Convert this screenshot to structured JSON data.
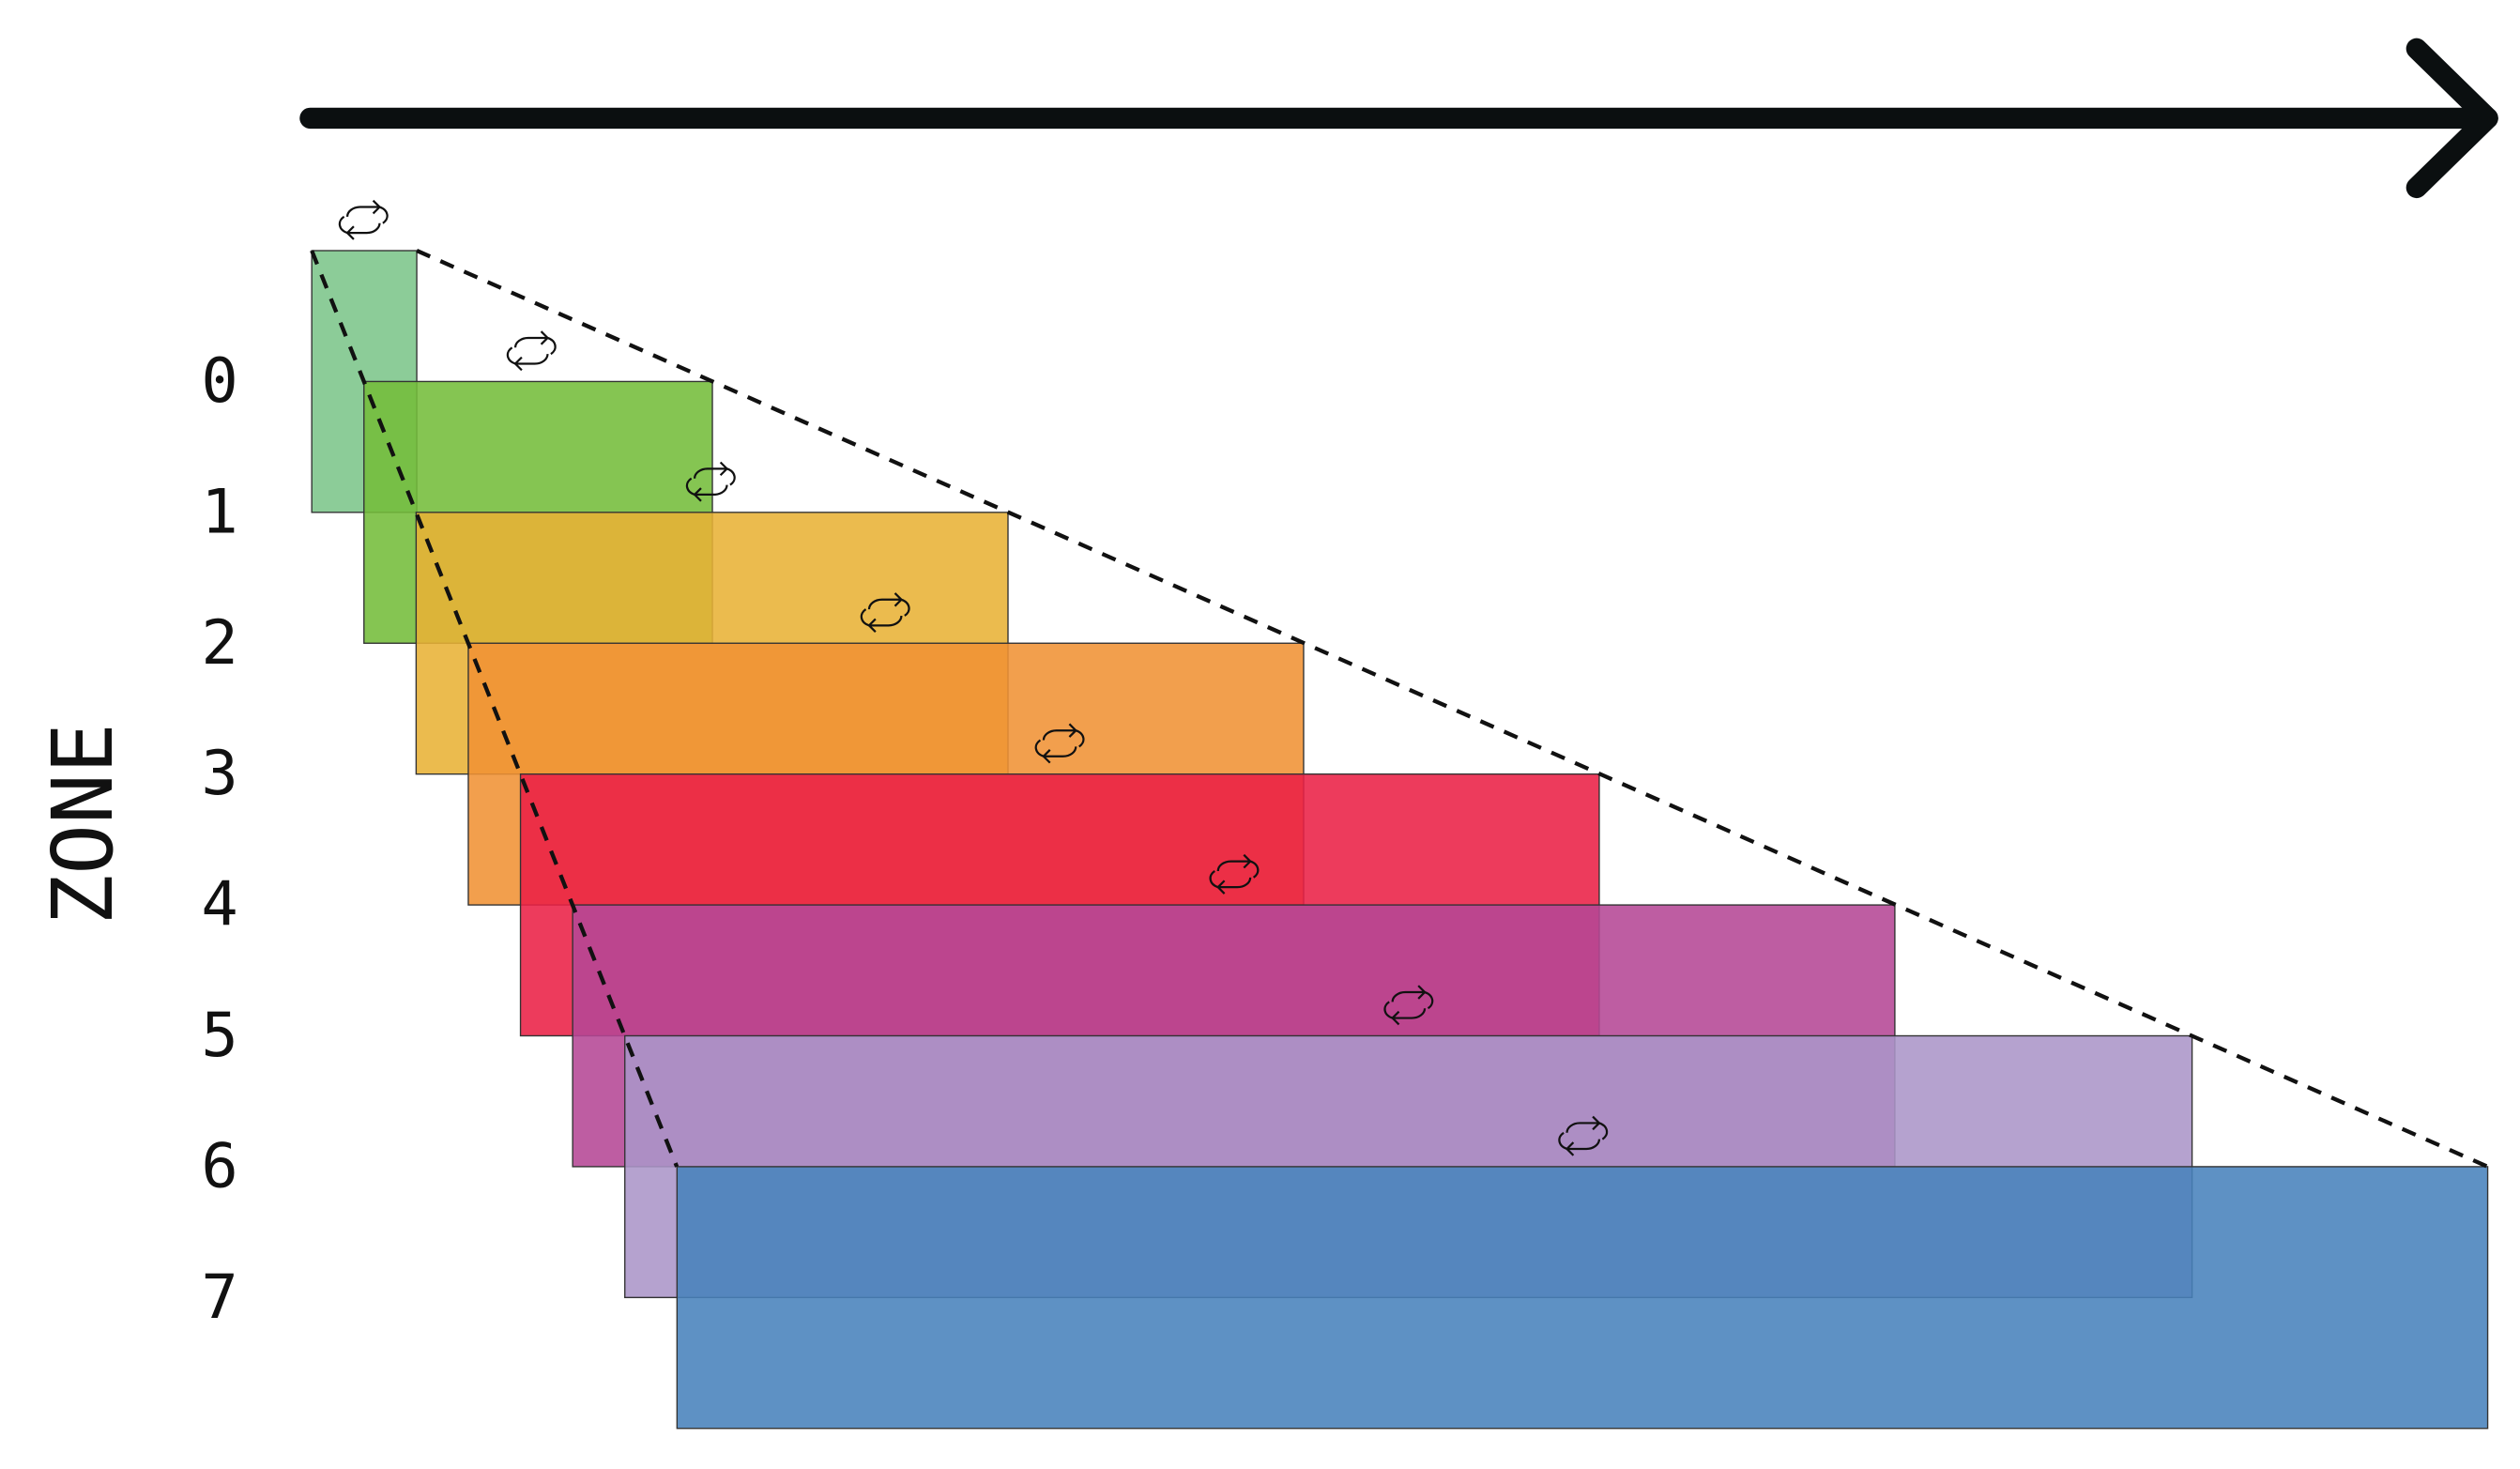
{
  "axis_label": "ZONE",
  "zones": [
    "0",
    "1",
    "2",
    "3",
    "4",
    "5",
    "6",
    "7"
  ]
}
